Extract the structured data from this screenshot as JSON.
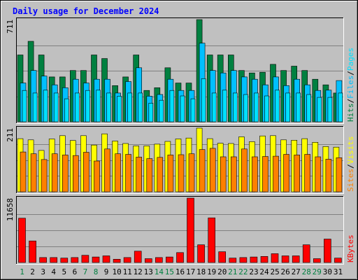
{
  "colors": {
    "background": "#c0c0c0",
    "panel": "#c0c0c0",
    "title": "#0000ff",
    "weekday_label": "#000000",
    "weekend_label": "#008040",
    "hits": "#008040",
    "files": "#00c0ff",
    "pages": "#00e0ff",
    "visits": "#ffff00",
    "sites": "#ff8000",
    "kbytes": "#ff0000"
  },
  "chart_data": {
    "type": "bar",
    "title": "Daily usage for December 2024",
    "categories": [
      "1",
      "2",
      "3",
      "4",
      "5",
      "6",
      "7",
      "8",
      "9",
      "10",
      "11",
      "12",
      "13",
      "14",
      "15",
      "16",
      "17",
      "18",
      "19",
      "20",
      "21",
      "22",
      "23",
      "24",
      "25",
      "26",
      "27",
      "28",
      "29",
      "30",
      "31"
    ],
    "weekend_days": [
      "1",
      "7",
      "8",
      "14",
      "15",
      "21",
      "22",
      "28",
      "29"
    ],
    "panels": [
      {
        "id": "hits-files-pages",
        "max_label": "711",
        "ylim": [
          0,
          711
        ],
        "legend": [
          {
            "text": "Hits",
            "color": "#008040"
          },
          {
            "text": "/",
            "color": "#000000"
          },
          {
            "text": "Files",
            "color": "#00c0ff"
          },
          {
            "text": "/",
            "color": "#000000"
          },
          {
            "text": "Pages",
            "color": "#00e0ff"
          }
        ],
        "series": [
          {
            "name": "Hits",
            "color": "#008040",
            "values": [
              465,
              560,
              465,
              312,
              312,
              357,
              357,
              465,
              440,
              252,
              312,
              465,
              218,
              237,
              376,
              270,
              270,
              711,
              465,
              465,
              465,
              357,
              340,
              345,
              400,
              357,
              387,
              357,
              296,
              257,
              200
            ]
          },
          {
            "name": "Files",
            "color": "#00c0ff",
            "values": [
              270,
              357,
              318,
              257,
              237,
              296,
              270,
              296,
              296,
              200,
              280,
              376,
              178,
              190,
              296,
              218,
              218,
              547,
              357,
              340,
              357,
              312,
              296,
              257,
              312,
              252,
              296,
              257,
              218,
              220,
              287
            ]
          },
          {
            "name": "Pages",
            "color": "#00e0ff",
            "values": [
              218,
              200,
              220,
              200,
              160,
              200,
              218,
              220,
              200,
              178,
              200,
              200,
              130,
              150,
              218,
              180,
              160,
              300,
              200,
              220,
              200,
              190,
              200,
              180,
              220,
              200,
              200,
              190,
              170,
              170,
              200
            ]
          }
        ]
      },
      {
        "id": "visits-sites",
        "max_label": "211",
        "ylim": [
          0,
          211
        ],
        "legend": [
          {
            "text": "Sites",
            "color": "#ff8000"
          },
          {
            "text": "/",
            "color": "#000000"
          },
          {
            "text": "Visits",
            "color": "#ffff00"
          }
        ],
        "series": [
          {
            "name": "Visits",
            "color": "#ffff00",
            "values": [
              176,
              172,
              137,
              175,
              186,
              170,
              186,
              155,
              192,
              168,
              160,
              152,
              152,
              158,
              167,
              175,
              178,
              211,
              176,
              161,
              160,
              182,
              166,
              185,
              186,
              172,
              171,
              176,
              164,
              150,
              148
            ]
          },
          {
            "name": "Sites",
            "color": "#ff8000",
            "values": [
              132,
              126,
              107,
              126,
              122,
              120,
              131,
              102,
              142,
              126,
              124,
              115,
              110,
              114,
              122,
              123,
              126,
              140,
              144,
              116,
              116,
              142,
              116,
              117,
              118,
              124,
              122,
              124,
              116,
              108,
              113
            ]
          }
        ]
      },
      {
        "id": "kbytes",
        "max_label": "11658",
        "ylim": [
          0,
          11658
        ],
        "legend": [
          {
            "text": "KBytes",
            "color": "#ff0000"
          }
        ],
        "series": [
          {
            "name": "KBytes",
            "color": "#ff0000",
            "values": [
              8020,
              3900,
              900,
              900,
              800,
              900,
              1300,
              1000,
              1200,
              600,
              900,
              2050,
              700,
              900,
              1000,
              1800,
              11658,
              3200,
              8080,
              1950,
              800,
              900,
              1000,
              1100,
              1600,
              1200,
              1200,
              3200,
              700,
              4250,
              800
            ]
          }
        ]
      }
    ]
  }
}
